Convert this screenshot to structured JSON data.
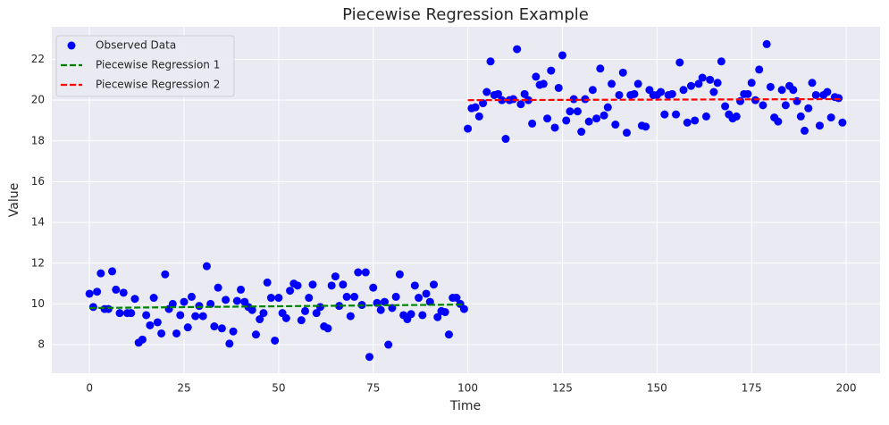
{
  "chart_data": {
    "type": "scatter",
    "title": "Piecewise Regression Example",
    "x_label": "Time",
    "y_label": "Value",
    "xlim": [
      -9.95,
      208.95
    ],
    "ylim": [
      6.6,
      23.6
    ],
    "xticks": [
      0,
      25,
      50,
      75,
      100,
      125,
      150,
      175,
      200
    ],
    "yticks": [
      8,
      10,
      12,
      14,
      16,
      18,
      20,
      22
    ],
    "grid": true,
    "legend": "upper left",
    "series": [
      {
        "name": "Observed Data",
        "type": "scatter",
        "color": "#0000ff",
        "x": [
          0,
          1,
          2,
          3,
          4,
          5,
          6,
          7,
          8,
          9,
          10,
          11,
          12,
          13,
          14,
          15,
          16,
          17,
          18,
          19,
          20,
          21,
          22,
          23,
          24,
          25,
          26,
          27,
          28,
          29,
          30,
          31,
          32,
          33,
          34,
          35,
          36,
          37,
          38,
          39,
          40,
          41,
          42,
          43,
          44,
          45,
          46,
          47,
          48,
          49,
          50,
          51,
          52,
          53,
          54,
          55,
          56,
          57,
          58,
          59,
          60,
          61,
          62,
          63,
          64,
          65,
          66,
          67,
          68,
          69,
          70,
          71,
          72,
          73,
          74,
          75,
          76,
          77,
          78,
          79,
          80,
          81,
          82,
          83,
          84,
          85,
          86,
          87,
          88,
          89,
          90,
          91,
          92,
          93,
          94,
          95,
          96,
          97,
          98,
          99,
          100,
          101,
          102,
          103,
          104,
          105,
          106,
          107,
          108,
          109,
          110,
          111,
          112,
          113,
          114,
          115,
          116,
          117,
          118,
          119,
          120,
          121,
          122,
          123,
          124,
          125,
          126,
          127,
          128,
          129,
          130,
          131,
          132,
          133,
          134,
          135,
          136,
          137,
          138,
          139,
          140,
          141,
          142,
          143,
          144,
          145,
          146,
          147,
          148,
          149,
          150,
          151,
          152,
          153,
          154,
          155,
          156,
          157,
          158,
          159,
          160,
          161,
          162,
          163,
          164,
          165,
          166,
          167,
          168,
          169,
          170,
          171,
          172,
          173,
          174,
          175,
          176,
          177,
          178,
          179,
          180,
          181,
          182,
          183,
          184,
          185,
          186,
          187,
          188,
          189,
          190,
          191,
          192,
          193,
          194,
          195,
          196,
          197,
          198,
          199
        ],
        "values": [
          10.5,
          9.85,
          10.6,
          11.5,
          9.75,
          9.75,
          11.6,
          10.7,
          9.55,
          10.55,
          9.55,
          9.55,
          10.25,
          8.1,
          8.25,
          9.45,
          8.95,
          10.3,
          9.1,
          8.55,
          11.45,
          9.75,
          10.0,
          8.55,
          9.45,
          10.1,
          8.85,
          10.35,
          9.4,
          9.9,
          9.4,
          11.85,
          10.0,
          8.9,
          10.8,
          8.8,
          10.2,
          8.05,
          8.65,
          10.15,
          10.7,
          10.1,
          9.85,
          9.7,
          8.5,
          9.25,
          9.55,
          11.05,
          10.3,
          8.2,
          10.3,
          9.55,
          9.3,
          10.65,
          11.0,
          10.9,
          9.2,
          9.65,
          10.3,
          10.95,
          9.55,
          9.85,
          8.9,
          8.8,
          10.9,
          11.35,
          9.9,
          10.95,
          10.35,
          9.4,
          10.35,
          11.55,
          9.95,
          11.55,
          7.4,
          10.8,
          10.05,
          9.7,
          10.1,
          8.0,
          9.8,
          10.35,
          11.45,
          9.45,
          9.25,
          9.5,
          10.9,
          10.3,
          9.45,
          10.5,
          10.1,
          10.95,
          9.35,
          9.65,
          9.6,
          8.5,
          10.3,
          10.3,
          10.0,
          9.75,
          18.6,
          19.6,
          19.65,
          19.2,
          19.85,
          20.4,
          21.9,
          20.25,
          20.3,
          20.0,
          18.1,
          20.0,
          20.05,
          22.5,
          19.8,
          20.3,
          20.0,
          18.85,
          21.15,
          20.75,
          20.8,
          19.1,
          21.45,
          18.65,
          20.6,
          22.2,
          19.0,
          19.45,
          20.05,
          19.45,
          18.45,
          20.05,
          18.95,
          20.5,
          19.1,
          21.55,
          19.25,
          19.65,
          20.8,
          18.8,
          20.25,
          21.35,
          18.4,
          20.25,
          20.3,
          20.8,
          18.75,
          18.7,
          20.5,
          20.25,
          20.25,
          20.4,
          19.3,
          20.25,
          20.3,
          19.3,
          21.85,
          20.5,
          18.9,
          20.7,
          19.0,
          20.8,
          21.1,
          19.2,
          21.0,
          20.4,
          20.85,
          21.9,
          19.7,
          19.3,
          19.1,
          19.2,
          19.95,
          20.3,
          20.3,
          20.85,
          20.0,
          21.5,
          19.75,
          22.75,
          20.65,
          19.15,
          18.95,
          20.5,
          19.75,
          20.7,
          20.5,
          19.95,
          19.2,
          18.5,
          19.6,
          20.85,
          20.25,
          18.75,
          20.25,
          20.4,
          19.15,
          20.15,
          20.1,
          18.9
        ]
      },
      {
        "name": "Piecewise Regression 1",
        "type": "line",
        "color": "#008000",
        "linestyle": "dashed",
        "x": [
          0,
          99
        ],
        "values": [
          9.8,
          9.97
        ]
      },
      {
        "name": "Piecewise Regression 2",
        "type": "line",
        "color": "#ff0000",
        "linestyle": "dashed",
        "x": [
          100,
          199
        ],
        "values": [
          20.0,
          20.05
        ]
      }
    ]
  }
}
